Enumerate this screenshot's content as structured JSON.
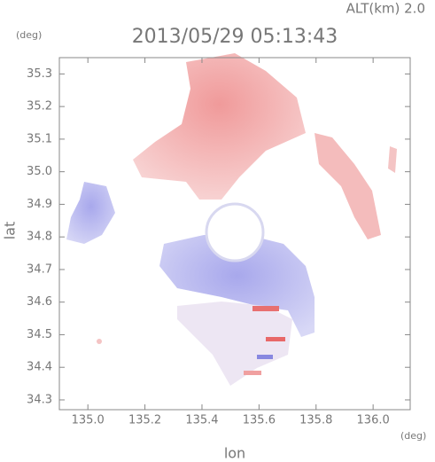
{
  "chart_data": {
    "type": "image",
    "title": "2013/05/29 05:13:43",
    "annotation": "ALT(km) 2.0",
    "xlabel": "lon",
    "ylabel": "lat",
    "xunit": "(deg)",
    "yunit": "(deg)",
    "xlim": [
      134.9,
      136.13
    ],
    "ylim": [
      34.27,
      35.35
    ],
    "xticks": [
      {
        "value": 135,
        "label": "135.0"
      },
      135.2,
      135.4,
      135.6,
      135.8,
      {
        "value": 136,
        "label": "136.0"
      }
    ],
    "yticks": [
      34.3,
      34.4,
      34.5,
      34.6,
      34.7,
      34.8,
      34.9,
      {
        "value": 35,
        "label": "35.0"
      },
      35.1,
      35.2,
      35.3
    ]
  }
}
